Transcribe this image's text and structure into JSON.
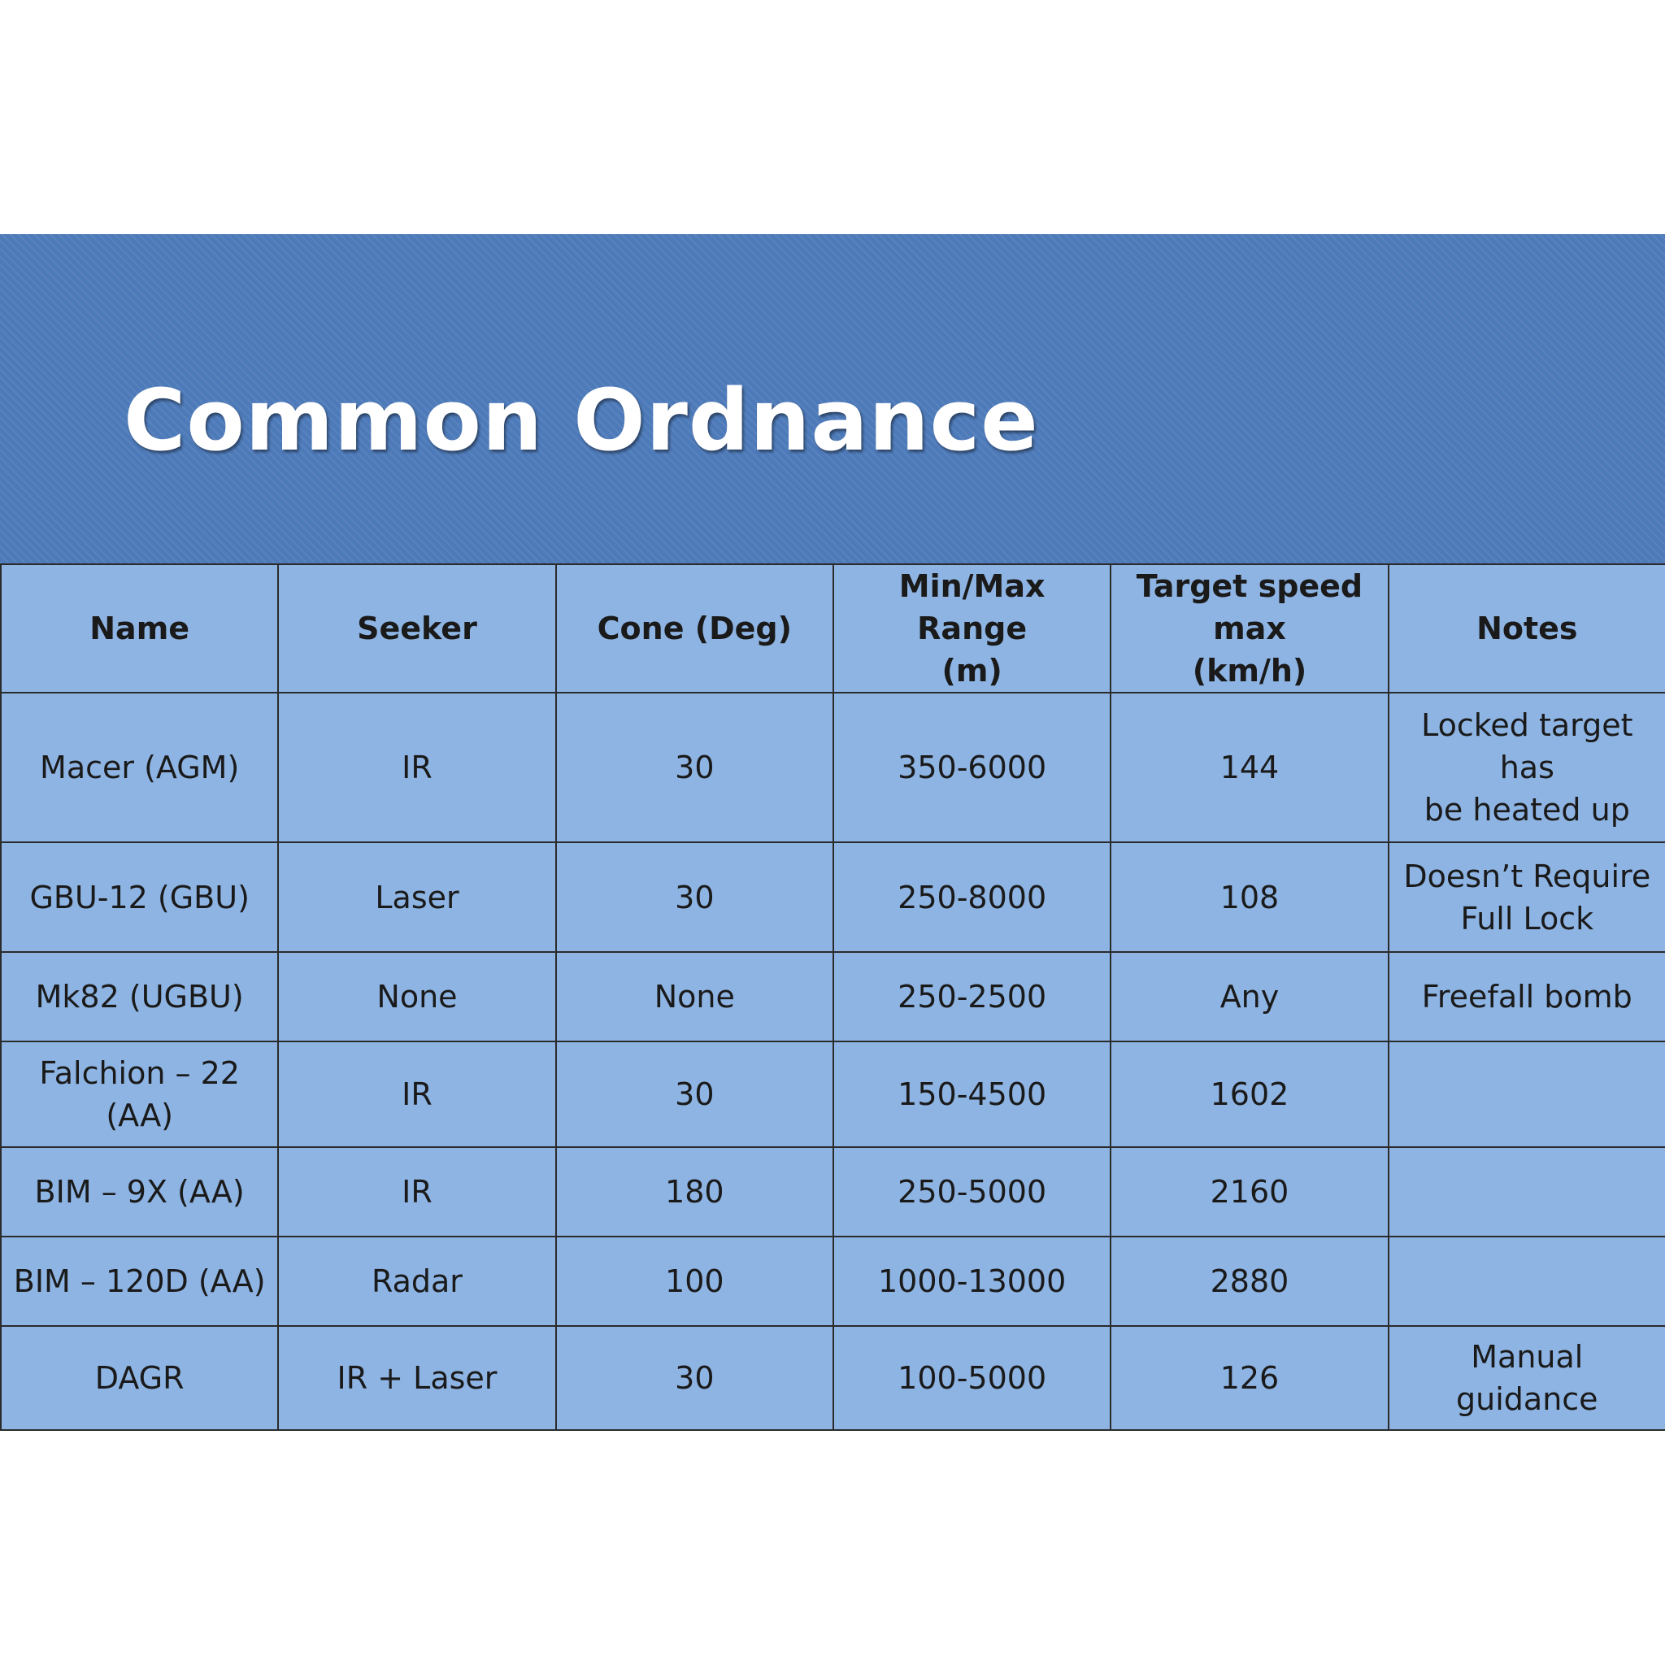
{
  "slide": {
    "title": "Common Ordnance"
  },
  "table": {
    "headers": [
      {
        "line1": "Name",
        "line2": ""
      },
      {
        "line1": "Seeker",
        "line2": ""
      },
      {
        "line1": "Cone (Deg)",
        "line2": ""
      },
      {
        "line1": "Min/Max Range",
        "line2": "(m)"
      },
      {
        "line1": "Target speed max",
        "line2": "(km/h)"
      },
      {
        "line1": "Notes",
        "line2": ""
      }
    ],
    "rows": [
      {
        "name": "Macer (AGM)",
        "seeker": "IR",
        "cone": "30",
        "range": "350-6000",
        "speed": "144",
        "notes_1": "Locked target has",
        "notes_2": "be heated up"
      },
      {
        "name": "GBU-12 (GBU)",
        "seeker": "Laser",
        "cone": "30",
        "range": "250-8000",
        "speed": "108",
        "notes_1": "Doesn’t Require",
        "notes_2": "Full Lock"
      },
      {
        "name": "Mk82 (UGBU)",
        "seeker": "None",
        "cone": "None",
        "range": "250-2500",
        "speed": "Any",
        "notes_1": "Freefall bomb",
        "notes_2": ""
      },
      {
        "name": "Falchion – 22 (AA)",
        "seeker": "IR",
        "cone": "30",
        "range": "150-4500",
        "speed": "1602",
        "notes_1": "",
        "notes_2": ""
      },
      {
        "name": "BIM – 9X (AA)",
        "seeker": "IR",
        "cone": "180",
        "range": "250-5000",
        "speed": "2160",
        "notes_1": "",
        "notes_2": ""
      },
      {
        "name": "BIM – 120D (AA)",
        "seeker": "Radar",
        "cone": "100",
        "range": "1000-13000",
        "speed": "2880",
        "notes_1": "",
        "notes_2": ""
      },
      {
        "name": "DAGR",
        "seeker": "IR + Laser",
        "cone": "30",
        "range": "100-5000",
        "speed": "126",
        "notes_1": "Manual guidance",
        "notes_2": ""
      }
    ]
  },
  "colors": {
    "title_band": "#4d7ab9",
    "title_text": "#ffffff",
    "table_fill": "#8eb4e3",
    "table_border": "#2b2b2b"
  }
}
